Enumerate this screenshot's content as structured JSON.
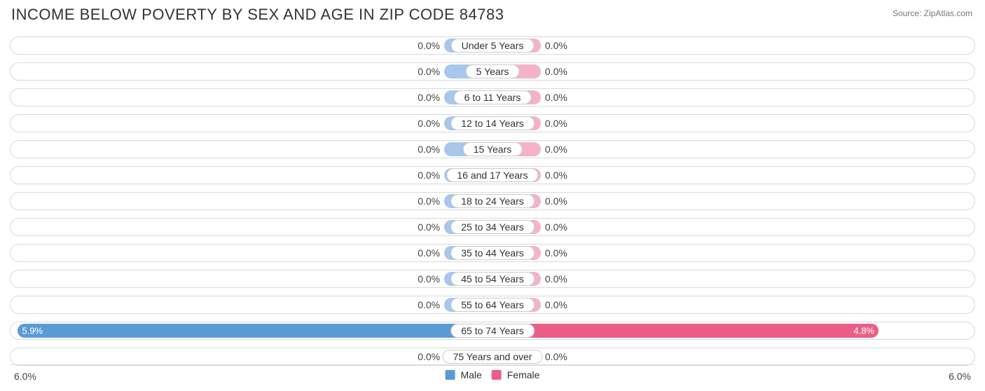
{
  "title": "INCOME BELOW POVERTY BY SEX AND AGE IN ZIP CODE 84783",
  "source": "Source: ZipAtlas.com",
  "chart": {
    "type": "diverging-bar",
    "axis_max": 6.0,
    "axis_max_label": "6.0%",
    "min_bar_pct": 10.0,
    "colors": {
      "male_full": "#5b9bd5",
      "male_light": "#a7c7ec",
      "female_full": "#ec5e87",
      "female_light": "#f4b3c7",
      "track_border": "#d9d9d9",
      "pill_border": "#cccccc",
      "text": "#333333",
      "value_text": "#444444",
      "bar_text": "#ffffff",
      "background": "#ffffff",
      "footer_border": "#dddddd"
    },
    "legend": {
      "male": "Male",
      "female": "Female"
    },
    "categories": [
      {
        "label": "Under 5 Years",
        "male": 0.0,
        "female": 0.0,
        "male_label": "0.0%",
        "female_label": "0.0%"
      },
      {
        "label": "5 Years",
        "male": 0.0,
        "female": 0.0,
        "male_label": "0.0%",
        "female_label": "0.0%"
      },
      {
        "label": "6 to 11 Years",
        "male": 0.0,
        "female": 0.0,
        "male_label": "0.0%",
        "female_label": "0.0%"
      },
      {
        "label": "12 to 14 Years",
        "male": 0.0,
        "female": 0.0,
        "male_label": "0.0%",
        "female_label": "0.0%"
      },
      {
        "label": "15 Years",
        "male": 0.0,
        "female": 0.0,
        "male_label": "0.0%",
        "female_label": "0.0%"
      },
      {
        "label": "16 and 17 Years",
        "male": 0.0,
        "female": 0.0,
        "male_label": "0.0%",
        "female_label": "0.0%"
      },
      {
        "label": "18 to 24 Years",
        "male": 0.0,
        "female": 0.0,
        "male_label": "0.0%",
        "female_label": "0.0%"
      },
      {
        "label": "25 to 34 Years",
        "male": 0.0,
        "female": 0.0,
        "male_label": "0.0%",
        "female_label": "0.0%"
      },
      {
        "label": "35 to 44 Years",
        "male": 0.0,
        "female": 0.0,
        "male_label": "0.0%",
        "female_label": "0.0%"
      },
      {
        "label": "45 to 54 Years",
        "male": 0.0,
        "female": 0.0,
        "male_label": "0.0%",
        "female_label": "0.0%"
      },
      {
        "label": "55 to 64 Years",
        "male": 0.0,
        "female": 0.0,
        "male_label": "0.0%",
        "female_label": "0.0%"
      },
      {
        "label": "65 to 74 Years",
        "male": 5.9,
        "female": 4.8,
        "male_label": "5.9%",
        "female_label": "4.8%"
      },
      {
        "label": "75 Years and over",
        "male": 0.0,
        "female": 0.0,
        "male_label": "0.0%",
        "female_label": "0.0%"
      }
    ],
    "title_fontsize": 22,
    "value_fontsize": 14,
    "pill_fontsize": 14,
    "bar_radius": 10,
    "track_radius": 13
  }
}
